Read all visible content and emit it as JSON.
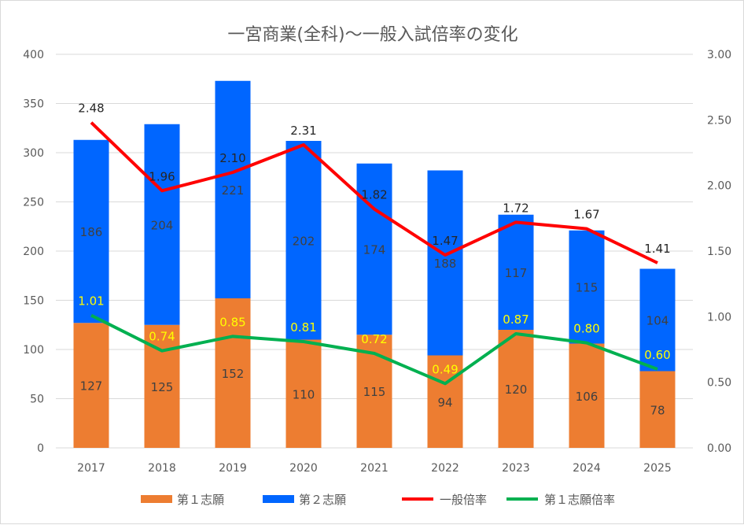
{
  "chart_data": {
    "type": "bar+line",
    "title": "一宮商業(全科)～一般入試倍率の変化",
    "categories": [
      "2017",
      "2018",
      "2019",
      "2020",
      "2021",
      "2022",
      "2023",
      "2024",
      "2025"
    ],
    "bar_series": [
      {
        "name": "第１志願",
        "color": "#ED7D31",
        "values": [
          127,
          125,
          152,
          110,
          115,
          94,
          120,
          106,
          78
        ]
      },
      {
        "name": "第２志願",
        "color": "#0066FF",
        "values": [
          186,
          204,
          221,
          202,
          174,
          188,
          117,
          115,
          104
        ]
      }
    ],
    "line_series": [
      {
        "name": "一般倍率",
        "color": "#FF0000",
        "label_color": "#262626",
        "values": [
          2.48,
          1.96,
          2.1,
          2.31,
          1.82,
          1.47,
          1.72,
          1.67,
          1.41
        ]
      },
      {
        "name": "第１志願倍率",
        "color": "#00B050",
        "label_color": "#FFFF00",
        "values": [
          1.01,
          0.74,
          0.85,
          0.81,
          0.72,
          0.49,
          0.87,
          0.8,
          0.6
        ]
      }
    ],
    "y_left": {
      "range": [
        0,
        400
      ],
      "ticks": [
        "0",
        "50",
        "100",
        "150",
        "200",
        "250",
        "300",
        "350",
        "400"
      ]
    },
    "y_right": {
      "range": [
        0,
        3
      ],
      "ticks": [
        "0.00",
        "0.50",
        "1.00",
        "1.50",
        "2.00",
        "2.50",
        "3.00"
      ]
    },
    "grid": true,
    "legend": "bottom"
  }
}
